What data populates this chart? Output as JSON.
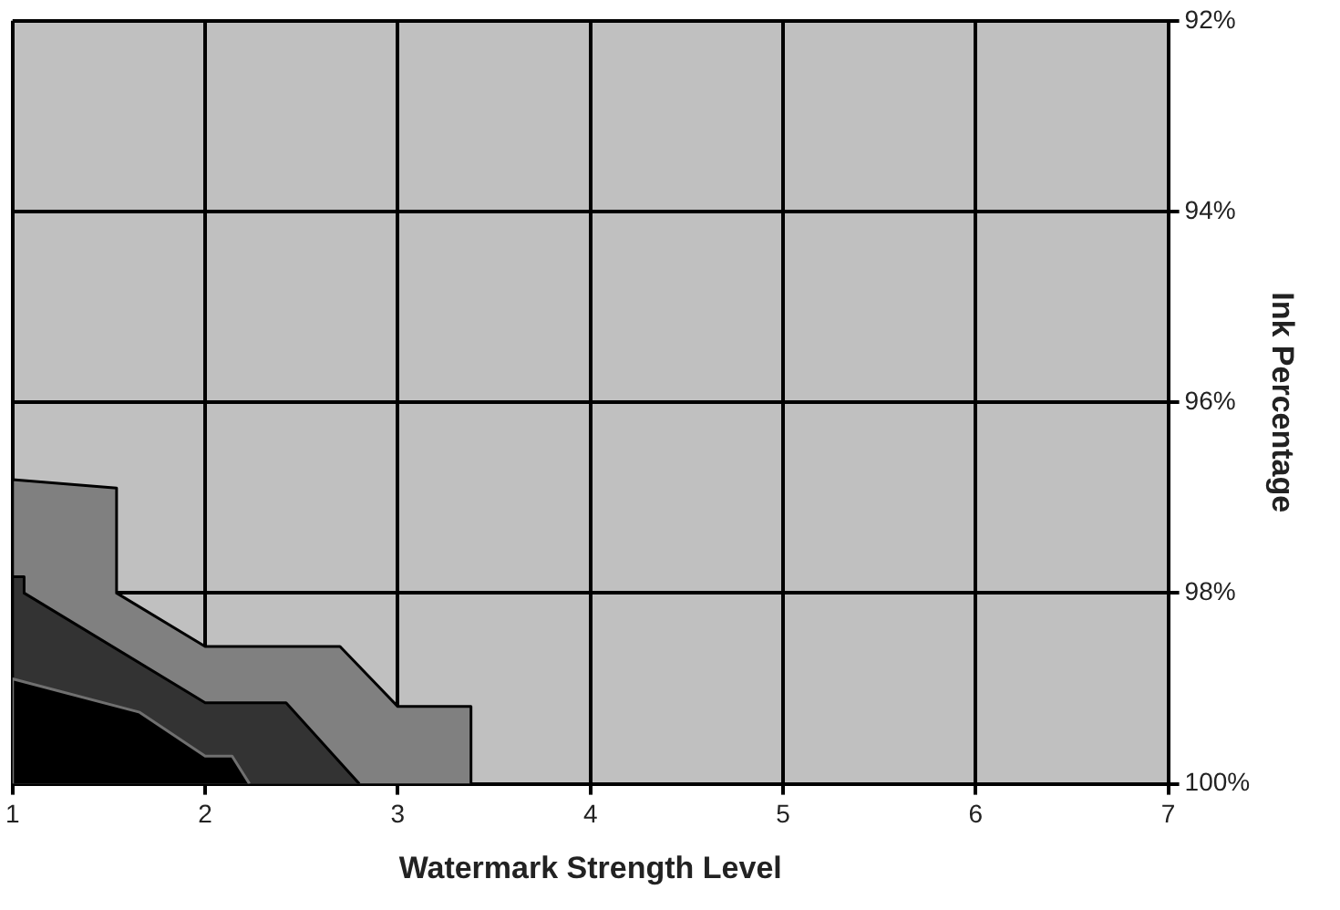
{
  "chart_data": {
    "type": "area",
    "xlabel": "Watermark Strength Level",
    "ylabel": "Ink Percentage",
    "xlim": [
      1,
      7
    ],
    "xticks": [
      1,
      2,
      3,
      4,
      5,
      6,
      7
    ],
    "ylim": [
      100,
      92
    ],
    "yticks": [
      {
        "value": 92,
        "label": "92%"
      },
      {
        "value": 94,
        "label": "94%"
      },
      {
        "value": 96,
        "label": "96%"
      },
      {
        "value": 98,
        "label": "98%"
      },
      {
        "value": 100,
        "label": "100%"
      }
    ],
    "grid": true,
    "legend": false,
    "series": [
      {
        "color": "#808080",
        "x": [
          1,
          1,
          1.54,
          1.54,
          2,
          2.7,
          3,
          3.38,
          3.38
        ],
        "values": [
          100,
          96.81,
          96.9,
          98,
          98.56,
          98.56,
          99.19,
          99.19,
          100
        ]
      },
      {
        "color": "#333333",
        "x": [
          1,
          1,
          1.06,
          1.06,
          2,
          2.42,
          2.8
        ],
        "values": [
          100,
          97.83,
          97.83,
          98,
          99.15,
          99.15,
          100
        ]
      },
      {
        "color": "#000000",
        "x": [
          1,
          1,
          1.66,
          2,
          2.14,
          2.23
        ],
        "values": [
          100,
          98.9,
          99.25,
          99.71,
          99.71,
          100
        ]
      }
    ]
  }
}
